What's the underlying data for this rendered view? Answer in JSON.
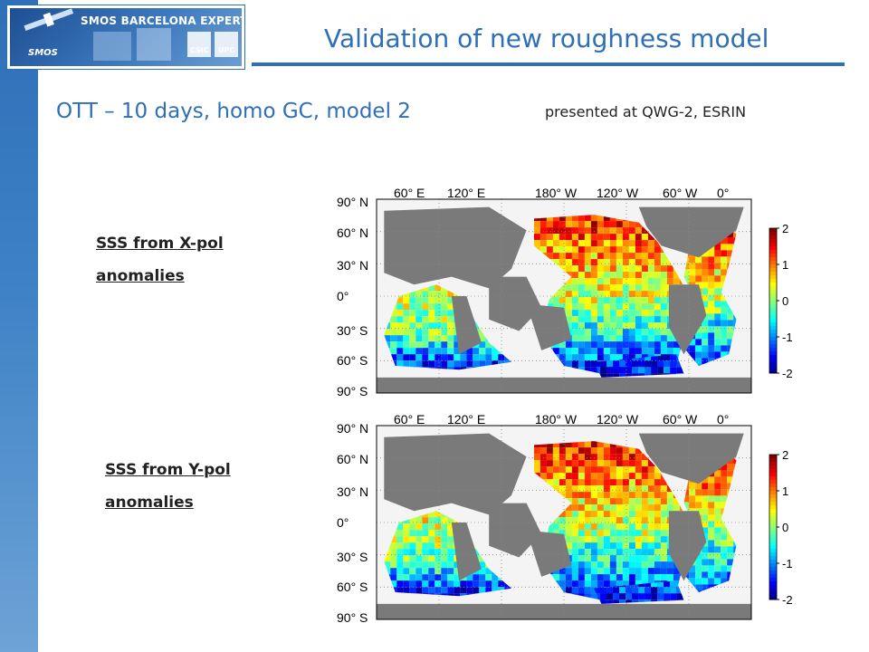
{
  "header": {
    "logo_text": "SMOS BARCELONA EXPERT CENTRE",
    "logo_sub": "SMOS",
    "logo_csic": "CSIC",
    "logo_upc": "UPC",
    "title": "Validation of new roughness model"
  },
  "subtitle": "OTT – 10 days, homo GC, model 2",
  "presented": "presented at QWG-2, ESRIN",
  "colors": {
    "accent": "#2e6fb8",
    "land": "#7a7a7a",
    "frame": "#000000"
  },
  "maps": [
    {
      "label_line1": "SSS from X-pol",
      "label_line2": "anomalies",
      "lon_ticks": [
        "60° E",
        "120° E",
        "180° W",
        "120° W",
        "60° W",
        "0°"
      ],
      "lat_ticks": [
        "90° N",
        "60° N",
        "30° N",
        "0°",
        "30° S",
        "60° S",
        "90° S"
      ],
      "colorbar_ticks": [
        "2",
        "1",
        "0",
        "-1",
        "-2"
      ],
      "colorbar_range": [
        -2,
        2
      ]
    },
    {
      "label_line1": "SSS from Y-pol",
      "label_line2": "anomalies",
      "lon_ticks": [
        "60° E",
        "120° E",
        "180° W",
        "120° W",
        "60° W",
        "0°"
      ],
      "lat_ticks": [
        "90° N",
        "60° N",
        "30° N",
        "0°",
        "30° S",
        "60° S",
        "90° S"
      ],
      "colorbar_ticks": [
        "2",
        "1",
        "0",
        "-1",
        "-2"
      ],
      "colorbar_range": [
        -2,
        2
      ]
    }
  ]
}
